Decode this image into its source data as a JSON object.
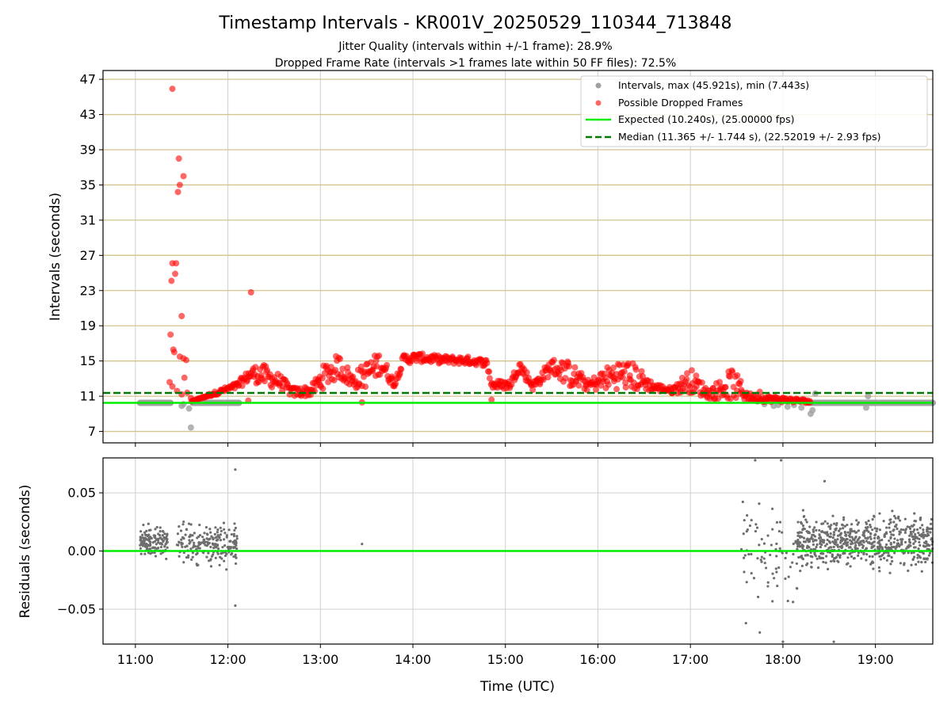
{
  "chart_data": {
    "type": "scatter",
    "title": "Timestamp Intervals - KR001V_20250529_110344_713848",
    "subtitle_lines": [
      "Jitter Quality (intervals within +/-1 frame): 28.9%",
      "Dropped Frame Rate (intervals >1 frames late within 50 FF files): 72.5%"
    ],
    "xlabel": "Time (UTC)",
    "xlim": [
      10.65,
      19.62
    ],
    "xticks": [
      11,
      12,
      13,
      14,
      15,
      16,
      17,
      18,
      19
    ],
    "xtick_labels": [
      "11:00",
      "12:00",
      "13:00",
      "14:00",
      "15:00",
      "16:00",
      "17:00",
      "18:00",
      "19:00"
    ],
    "top_panel": {
      "ylabel": "Intervals (seconds)",
      "ylim": [
        5.7,
        48
      ],
      "yticks": [
        7,
        11,
        15,
        19,
        23,
        27,
        31,
        35,
        39,
        43,
        47
      ],
      "ytick_labels": [
        "7",
        "11",
        "15",
        "19",
        "23",
        "27",
        "31",
        "35",
        "39",
        "43",
        "47"
      ],
      "hgrid_color": "#d4c48e",
      "expected_value": 10.24,
      "median_value": 11.365,
      "legend_position": "top-right",
      "legend": [
        "Intervals, max (45.921s), min (7.443s)",
        "Possible Dropped Frames",
        "Expected (10.240s), (25.00000 fps)",
        "Median (11.365 +/- 1.744 s), (22.52019 +/- 2.93 fps)"
      ],
      "series": [
        {
          "name": "Intervals",
          "color": "#a0a0a0",
          "segments": [
            {
              "x": [
                11.05,
                11.38
              ],
              "y": 10.24
            },
            {
              "x": [
                11.62,
                12.12
              ],
              "y": 10.24
            },
            {
              "x": [
                18.28,
                19.62
              ],
              "y": 10.24
            }
          ],
          "points": [
            [
              11.5,
              9.9
            ],
            [
              11.52,
              10.1
            ],
            [
              11.58,
              9.6
            ],
            [
              11.6,
              7.443
            ],
            [
              11.63,
              10.5
            ],
            [
              17.8,
              10.1
            ],
            [
              17.9,
              9.9
            ],
            [
              17.95,
              10.0
            ],
            [
              18.05,
              9.8
            ],
            [
              18.12,
              10.0
            ],
            [
              18.2,
              9.7
            ],
            [
              18.3,
              9.0
            ],
            [
              18.32,
              9.4
            ],
            [
              18.35,
              11.3
            ],
            [
              18.9,
              9.7
            ],
            [
              18.92,
              11.0
            ]
          ]
        },
        {
          "name": "Possible Dropped Frames",
          "color": "#ff0000",
          "outliers": [
            [
              11.4,
              45.921
            ],
            [
              11.47,
              38.0
            ],
            [
              11.48,
              35.0
            ],
            [
              11.52,
              36.0
            ],
            [
              11.46,
              34.2
            ],
            [
              11.4,
              26.1
            ],
            [
              11.44,
              26.1
            ],
            [
              11.43,
              24.9
            ],
            [
              11.39,
              24.1
            ],
            [
              11.5,
              20.1
            ],
            [
              11.38,
              18.0
            ],
            [
              11.42,
              16.0
            ],
            [
              11.41,
              16.3
            ],
            [
              11.48,
              15.5
            ],
            [
              11.52,
              15.3
            ],
            [
              11.55,
              15.1
            ],
            [
              11.37,
              12.6
            ],
            [
              11.53,
              13.1
            ],
            [
              11.4,
              12.1
            ],
            [
              11.45,
              11.6
            ],
            [
              11.5,
              11.2
            ],
            [
              11.56,
              11.4
            ],
            [
              11.6,
              10.8
            ],
            [
              12.25,
              22.8
            ],
            [
              12.22,
              10.5
            ],
            [
              13.45,
              10.3
            ],
            [
              14.85,
              10.6
            ],
            [
              17.75,
              11.5
            ]
          ],
          "envelope": [
            [
              11.6,
              10.4,
              10.4
            ],
            [
              12.1,
              11.8,
              12.6
            ],
            [
              12.25,
              12.8,
              14.3
            ],
            [
              12.35,
              12.2,
              14.8
            ],
            [
              12.55,
              11.8,
              13.6
            ],
            [
              12.7,
              10.9,
              12.0
            ],
            [
              12.9,
              11.0,
              12.2
            ],
            [
              13.05,
              12.0,
              14.8
            ],
            [
              13.2,
              13.0,
              15.8
            ],
            [
              13.35,
              11.8,
              13.6
            ],
            [
              13.5,
              12.0,
              15.0
            ],
            [
              13.65,
              13.5,
              16.2
            ],
            [
              13.8,
              12.0,
              12.8
            ],
            [
              13.9,
              14.6,
              15.8
            ],
            [
              14.05,
              14.9,
              15.9
            ],
            [
              14.3,
              14.7,
              15.6
            ],
            [
              14.6,
              14.6,
              15.5
            ],
            [
              14.8,
              14.4,
              15.2
            ],
            [
              14.85,
              11.8,
              12.8
            ],
            [
              15.05,
              11.8,
              12.8
            ],
            [
              15.15,
              13.8,
              15.2
            ],
            [
              15.3,
              11.6,
              12.7
            ],
            [
              15.5,
              13.5,
              15.3
            ],
            [
              15.7,
              12.0,
              15.0
            ],
            [
              15.9,
              11.6,
              12.8
            ],
            [
              16.2,
              11.8,
              15.2
            ],
            [
              16.4,
              11.6,
              14.8
            ],
            [
              16.6,
              11.6,
              12.5
            ],
            [
              16.8,
              11.3,
              12.0
            ],
            [
              17.0,
              11.4,
              14.2
            ],
            [
              17.2,
              10.7,
              11.8
            ],
            [
              17.45,
              10.6,
              14.2
            ],
            [
              17.65,
              10.4,
              11.3
            ],
            [
              18.0,
              10.3,
              10.9
            ],
            [
              18.3,
              10.2,
              10.6
            ]
          ]
        }
      ]
    },
    "bottom_panel": {
      "ylabel": "Residuals (seconds)",
      "ylim": [
        -0.08,
        0.08
      ],
      "yticks": [
        -0.05,
        0.0,
        0.05
      ],
      "ytick_labels": [
        "−0.05",
        "0.00",
        "0.05"
      ],
      "zero_line": 0.0,
      "series": [
        {
          "name": "Residuals",
          "color": "#6e6e6e",
          "clusters": [
            {
              "x": [
                11.05,
                11.35
              ],
              "center": 0.008,
              "spread": 0.02,
              "count": 130
            },
            {
              "x": [
                11.45,
                12.1
              ],
              "center": 0.005,
              "spread": 0.025,
              "count": 200
            },
            {
              "x": [
                17.55,
                18.2
              ],
              "center": 0.0,
              "spread": 0.06,
              "count": 80
            },
            {
              "x": [
                18.15,
                19.62
              ],
              "center": 0.008,
              "spread": 0.03,
              "count": 650
            }
          ],
          "extra_points": [
            [
              13.45,
              0.006
            ],
            [
              12.08,
              0.07
            ],
            [
              12.08,
              -0.047
            ],
            [
              17.6,
              -0.062
            ],
            [
              17.75,
              -0.07
            ],
            [
              17.98,
              0.078
            ],
            [
              17.7,
              0.078
            ],
            [
              18.0,
              -0.078
            ],
            [
              18.55,
              -0.078
            ],
            [
              18.45,
              0.06
            ]
          ]
        }
      ]
    },
    "colors": {
      "expected_line": "#00ee00",
      "median_line": "#007a00",
      "dropped": "#ff0000",
      "intervals": "#a0a0a0",
      "residual_points": "#6e6e6e"
    }
  }
}
